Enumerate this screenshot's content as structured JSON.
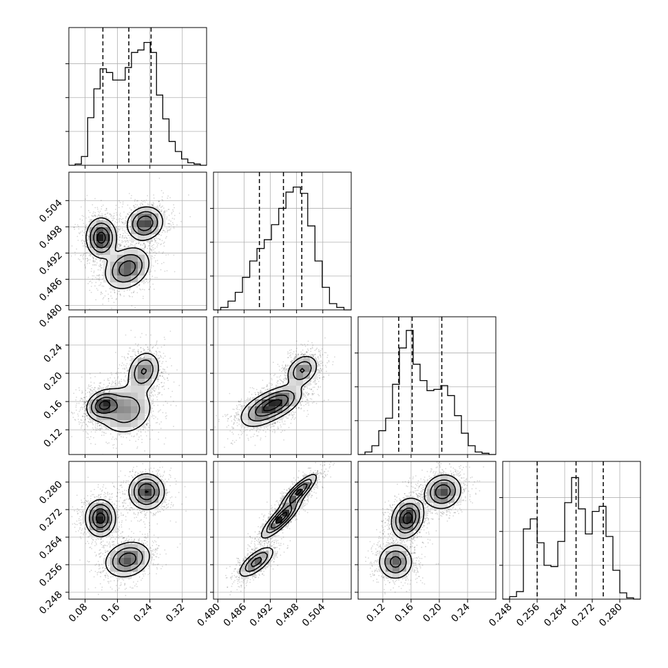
{
  "chart_data": {
    "type": "corner",
    "grid": true,
    "params": [
      {
        "range": [
          0.04,
          0.38
        ],
        "ticks": [
          "0.08",
          "0.16",
          "0.24",
          "0.32"
        ],
        "tick_values": [
          0.08,
          0.16,
          0.24,
          0.32
        ],
        "quantiles": [
          0.124,
          0.188,
          0.243
        ],
        "hist_edges_range": [
          0.04,
          0.38
        ],
        "hist_counts": [
          0.0,
          0.01,
          0.07,
          0.38,
          0.61,
          0.77,
          0.74,
          0.68,
          0.68,
          0.78,
          0.9,
          0.92,
          0.98,
          0.9,
          0.56,
          0.37,
          0.19,
          0.11,
          0.05,
          0.02,
          0.01,
          0.0
        ]
      },
      {
        "range": [
          0.479,
          0.5105
        ],
        "ticks": [
          "0.480",
          "0.486",
          "0.492",
          "0.498",
          "0.504"
        ],
        "tick_values": [
          0.48,
          0.486,
          0.492,
          0.498,
          0.504
        ],
        "quantiles": [
          0.4895,
          0.495,
          0.4992
        ],
        "hist_edges_range": [
          0.479,
          0.5105
        ],
        "hist_counts": [
          0.0,
          0.02,
          0.07,
          0.14,
          0.26,
          0.39,
          0.49,
          0.56,
          0.68,
          0.81,
          0.94,
          0.98,
          0.93,
          0.67,
          0.39,
          0.18,
          0.05,
          0.02,
          0.0
        ]
      },
      {
        "range": [
          0.085,
          0.28
        ],
        "ticks": [
          "0.12",
          "0.16",
          "0.20",
          "0.24"
        ],
        "tick_values": [
          0.12,
          0.16,
          0.2,
          0.24
        ],
        "quantiles": [
          0.1425,
          0.1615,
          0.2035
        ],
        "hist_edges_range": [
          0.085,
          0.28
        ],
        "hist_counts": [
          0.0,
          0.02,
          0.07,
          0.19,
          0.29,
          0.56,
          0.85,
          0.99,
          0.72,
          0.59,
          0.51,
          0.52,
          0.55,
          0.47,
          0.31,
          0.17,
          0.07,
          0.02,
          0.01,
          0.0
        ]
      },
      {
        "range": [
          0.246,
          0.286
        ],
        "ticks": [
          "0.248",
          "0.256",
          "0.264",
          "0.272",
          "0.280"
        ],
        "tick_values": [
          0.248,
          0.256,
          0.264,
          0.272,
          0.28
        ],
        "quantiles": [
          0.256,
          0.2673,
          0.2752
        ],
        "hist_edges_range": [
          0.246,
          0.286
        ],
        "hist_counts": [
          0.0,
          0.02,
          0.06,
          0.56,
          0.64,
          0.45,
          0.27,
          0.26,
          0.46,
          0.77,
          0.97,
          0.72,
          0.52,
          0.7,
          0.74,
          0.5,
          0.23,
          0.05,
          0.01,
          0.0
        ]
      }
    ],
    "pairs": [
      {
        "x_param": 0,
        "y_param": 1,
        "modes": [
          {
            "x": 0.12,
            "y": 0.4955,
            "sx": 0.018,
            "sy": 0.0022,
            "rho": 0.0,
            "w": 1.0
          },
          {
            "x": 0.228,
            "y": 0.4988,
            "sx": 0.022,
            "sy": 0.0019,
            "rho": 0.1,
            "w": 0.85
          },
          {
            "x": 0.184,
            "y": 0.4885,
            "sx": 0.028,
            "sy": 0.0024,
            "rho": 0.25,
            "w": 0.75
          }
        ]
      },
      {
        "x_param": 0,
        "y_param": 2,
        "modes": [
          {
            "x": 0.125,
            "y": 0.155,
            "sx": 0.02,
            "sy": 0.01,
            "rho": 0.2,
            "w": 1.0
          },
          {
            "x": 0.225,
            "y": 0.203,
            "sx": 0.02,
            "sy": 0.014,
            "rho": 0.2,
            "w": 0.7
          },
          {
            "x": 0.18,
            "y": 0.148,
            "sx": 0.035,
            "sy": 0.018,
            "rho": 0.1,
            "w": 0.6
          }
        ]
      },
      {
        "x_param": 0,
        "y_param": 3,
        "modes": [
          {
            "x": 0.118,
            "y": 0.2695,
            "sx": 0.018,
            "sy": 0.0026,
            "rho": 0.0,
            "w": 1.0
          },
          {
            "x": 0.232,
            "y": 0.2772,
            "sx": 0.022,
            "sy": 0.0026,
            "rho": 0.0,
            "w": 0.85
          },
          {
            "x": 0.185,
            "y": 0.2575,
            "sx": 0.028,
            "sy": 0.0026,
            "rho": 0.2,
            "w": 0.75
          }
        ]
      },
      {
        "x_param": 1,
        "y_param": 2,
        "modes": [
          {
            "x": 0.4935,
            "y": 0.158,
            "sx": 0.0028,
            "sy": 0.012,
            "rho": 0.5,
            "w": 1.0
          },
          {
            "x": 0.4993,
            "y": 0.204,
            "sx": 0.0018,
            "sy": 0.011,
            "rho": 0.3,
            "w": 0.7
          },
          {
            "x": 0.4895,
            "y": 0.145,
            "sx": 0.0025,
            "sy": 0.012,
            "rho": 0.4,
            "w": 0.5
          }
        ]
      },
      {
        "x_param": 1,
        "y_param": 3,
        "modes": [
          {
            "x": 0.4888,
            "y": 0.2568,
            "sx": 0.002,
            "sy": 0.0022,
            "rho": 0.7,
            "w": 0.7
          },
          {
            "x": 0.4945,
            "y": 0.2695,
            "sx": 0.0022,
            "sy": 0.0028,
            "rho": 0.85,
            "w": 1.0
          },
          {
            "x": 0.4985,
            "y": 0.2772,
            "sx": 0.002,
            "sy": 0.0025,
            "rho": 0.85,
            "w": 0.9
          }
        ]
      },
      {
        "x_param": 2,
        "y_param": 3,
        "modes": [
          {
            "x": 0.155,
            "y": 0.2695,
            "sx": 0.011,
            "sy": 0.0028,
            "rho": 0.2,
            "w": 1.0
          },
          {
            "x": 0.205,
            "y": 0.2772,
            "sx": 0.013,
            "sy": 0.0025,
            "rho": 0.1,
            "w": 0.8
          },
          {
            "x": 0.138,
            "y": 0.2568,
            "sx": 0.012,
            "sy": 0.0025,
            "rho": 0.0,
            "w": 0.7
          }
        ]
      }
    ]
  }
}
